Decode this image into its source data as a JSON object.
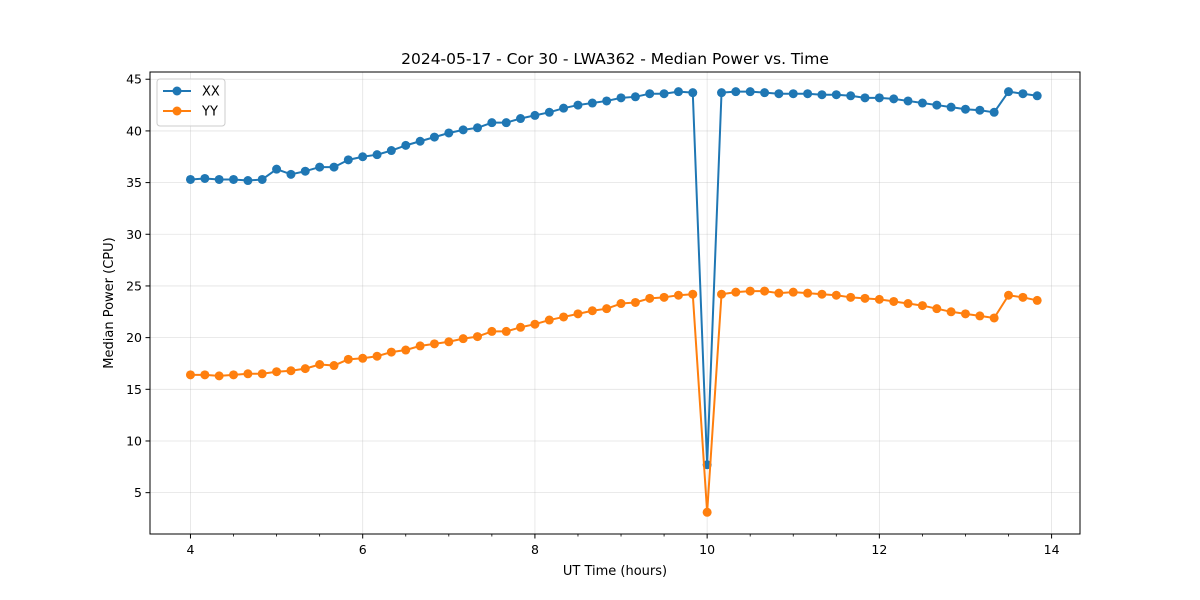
{
  "chart_data": {
    "type": "line",
    "title": "2024-05-17 - Cor 30 - LWA362 - Median Power vs. Time",
    "xlabel": "UT Time (hours)",
    "ylabel": "Median Power (CPU)",
    "xlim": [
      3.53,
      14.33
    ],
    "ylim": [
      1.0,
      45.7
    ],
    "xticks": [
      4,
      6,
      8,
      10,
      12,
      14
    ],
    "yticks": [
      5,
      10,
      15,
      20,
      25,
      30,
      35,
      40,
      45
    ],
    "grid": true,
    "legend_position": "upper-left",
    "x": [
      4.0,
      4.167,
      4.333,
      4.5,
      4.667,
      4.833,
      5.0,
      5.167,
      5.333,
      5.5,
      5.667,
      5.833,
      6.0,
      6.167,
      6.333,
      6.5,
      6.667,
      6.833,
      7.0,
      7.167,
      7.333,
      7.5,
      7.667,
      7.833,
      8.0,
      8.167,
      8.333,
      8.5,
      8.667,
      8.833,
      9.0,
      9.167,
      9.333,
      9.5,
      9.667,
      9.833,
      10.0,
      10.167,
      10.333,
      10.5,
      10.667,
      10.833,
      11.0,
      11.167,
      11.333,
      11.5,
      11.667,
      11.833,
      12.0,
      12.167,
      12.333,
      12.5,
      12.667,
      12.833,
      13.0,
      13.167,
      13.333,
      13.5,
      13.667,
      13.833
    ],
    "series": [
      {
        "name": "XX",
        "color": "#1f77b4",
        "values": [
          35.3,
          35.4,
          35.3,
          35.3,
          35.2,
          35.3,
          36.3,
          35.8,
          36.1,
          36.5,
          36.5,
          37.2,
          37.5,
          37.7,
          38.1,
          38.6,
          39.0,
          39.4,
          39.8,
          40.1,
          40.3,
          40.8,
          40.8,
          41.2,
          41.5,
          41.8,
          42.2,
          42.5,
          42.7,
          42.9,
          43.2,
          43.3,
          43.6,
          43.6,
          43.8,
          43.7,
          7.7,
          43.7,
          43.8,
          43.8,
          43.7,
          43.6,
          43.6,
          43.6,
          43.5,
          43.5,
          43.4,
          43.2,
          43.2,
          43.1,
          42.9,
          42.7,
          42.5,
          42.3,
          42.1,
          42.0,
          41.8,
          43.8,
          43.6,
          43.4
        ]
      },
      {
        "name": "YY",
        "color": "#ff7f0e",
        "values": [
          16.4,
          16.4,
          16.3,
          16.4,
          16.5,
          16.5,
          16.7,
          16.8,
          17.0,
          17.4,
          17.3,
          17.9,
          18.0,
          18.2,
          18.6,
          18.8,
          19.2,
          19.4,
          19.6,
          19.9,
          20.1,
          20.6,
          20.6,
          21.0,
          21.3,
          21.7,
          22.0,
          22.3,
          22.6,
          22.8,
          23.3,
          23.4,
          23.8,
          23.9,
          24.1,
          24.2,
          3.1,
          24.2,
          24.4,
          24.5,
          24.5,
          24.3,
          24.4,
          24.3,
          24.2,
          24.1,
          23.9,
          23.8,
          23.7,
          23.5,
          23.3,
          23.1,
          22.8,
          22.5,
          22.3,
          22.1,
          21.9,
          24.1,
          23.9,
          23.6
        ]
      }
    ]
  }
}
